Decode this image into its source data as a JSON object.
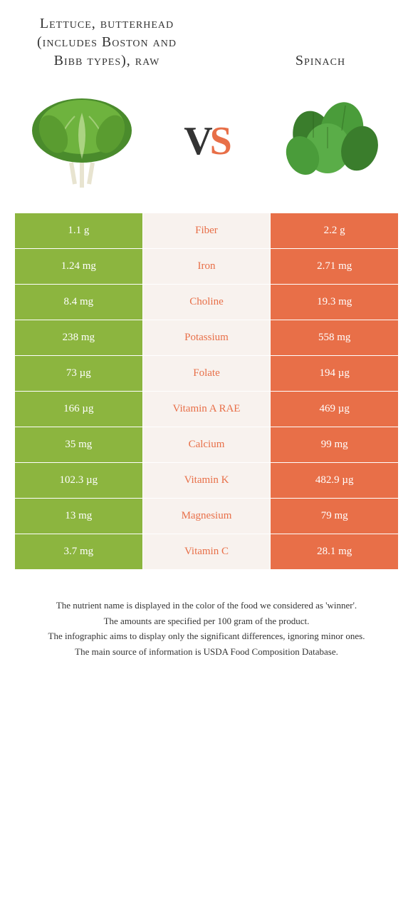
{
  "colors": {
    "left_bg": "#8cb53f",
    "right_bg": "#e86f48",
    "mid_bg": "#f8f2ee",
    "nutrient_text": "#e86f48",
    "value_text": "#ffffff",
    "title_text": "#333333"
  },
  "header": {
    "left_title": "Lettuce, butterhead (includes Boston and Bibb types), raw",
    "right_title": "Spinach",
    "vs_v": "V",
    "vs_s": "S"
  },
  "nutrients": [
    {
      "name": "Fiber",
      "left": "1.1 g",
      "right": "2.2 g"
    },
    {
      "name": "Iron",
      "left": "1.24 mg",
      "right": "2.71 mg"
    },
    {
      "name": "Choline",
      "left": "8.4 mg",
      "right": "19.3 mg"
    },
    {
      "name": "Potassium",
      "left": "238 mg",
      "right": "558 mg"
    },
    {
      "name": "Folate",
      "left": "73 µg",
      "right": "194 µg"
    },
    {
      "name": "Vitamin A RAE",
      "left": "166 µg",
      "right": "469 µg"
    },
    {
      "name": "Calcium",
      "left": "35 mg",
      "right": "99 mg"
    },
    {
      "name": "Vitamin K",
      "left": "102.3 µg",
      "right": "482.9 µg"
    },
    {
      "name": "Magnesium",
      "left": "13 mg",
      "right": "79 mg"
    },
    {
      "name": "Vitamin C",
      "left": "3.7 mg",
      "right": "28.1 mg"
    }
  ],
  "footer": {
    "line1": "The nutrient name is displayed in the color of the food we considered as 'winner'.",
    "line2": "The amounts are specified per 100 gram of the product.",
    "line3": "The infographic aims to display only the significant differences, ignoring minor ones.",
    "line4": "The main source of information is USDA Food Composition Database."
  }
}
